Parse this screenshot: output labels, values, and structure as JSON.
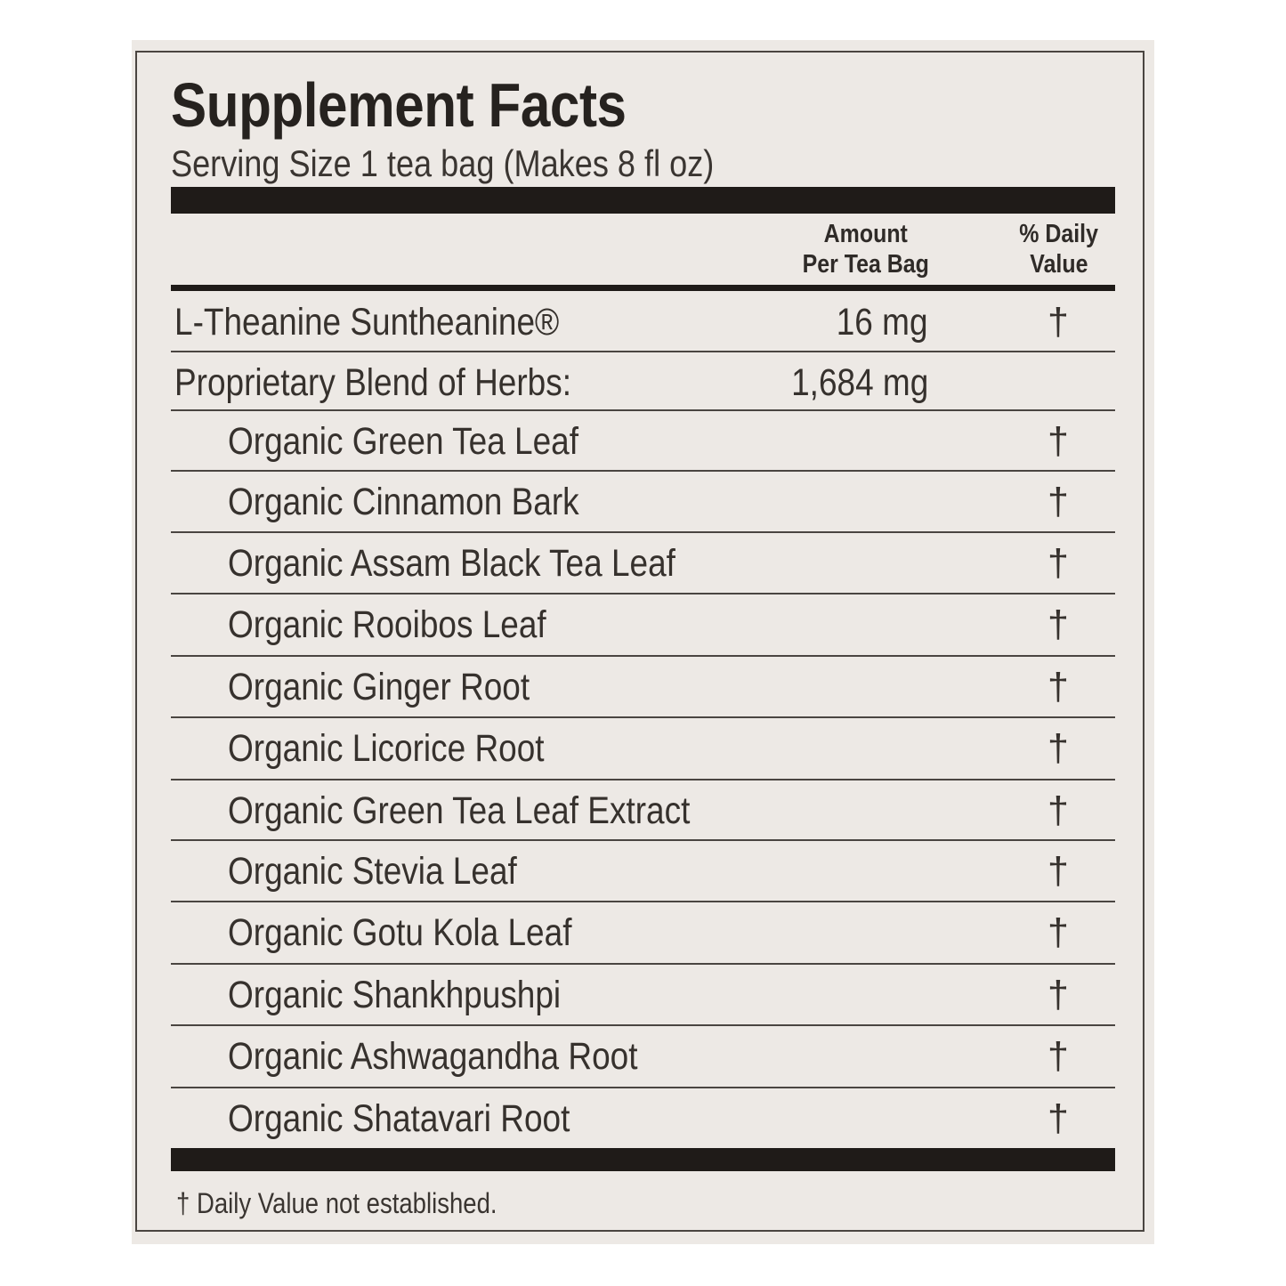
{
  "title": "Supplement Facts",
  "serving_size": "Serving Size 1 tea bag (Makes 8 fl oz)",
  "columns": {
    "amount_line1": "Amount",
    "amount_line2": "Per Tea Bag",
    "dv_line1": "% Daily",
    "dv_line2": "Value"
  },
  "rows": [
    {
      "name": "L-Theanine Suntheanine®",
      "amount": "16 mg",
      "dv": "†",
      "indent": false
    },
    {
      "name": "Proprietary Blend of Herbs:",
      "amount": "1,684 mg",
      "dv": "",
      "indent": false
    },
    {
      "name": "Organic Green Tea Leaf",
      "amount": "",
      "dv": "†",
      "indent": true
    },
    {
      "name": "Organic Cinnamon Bark",
      "amount": "",
      "dv": "†",
      "indent": true
    },
    {
      "name": "Organic Assam Black Tea Leaf",
      "amount": "",
      "dv": "†",
      "indent": true
    },
    {
      "name": "Organic Rooibos Leaf",
      "amount": "",
      "dv": "†",
      "indent": true
    },
    {
      "name": "Organic Ginger Root",
      "amount": "",
      "dv": "†",
      "indent": true
    },
    {
      "name": "Organic Licorice Root",
      "amount": "",
      "dv": "†",
      "indent": true
    },
    {
      "name": "Organic Green Tea Leaf Extract",
      "amount": "",
      "dv": "†",
      "indent": true
    },
    {
      "name": "Organic Stevia Leaf",
      "amount": "",
      "dv": "†",
      "indent": true
    },
    {
      "name": "Organic Gotu Kola Leaf",
      "amount": "",
      "dv": "†",
      "indent": true
    },
    {
      "name": "Organic Shankhpushpi",
      "amount": "",
      "dv": "†",
      "indent": true
    },
    {
      "name": "Organic Ashwagandha Root",
      "amount": "",
      "dv": "†",
      "indent": true
    },
    {
      "name": "Organic Shatavari Root",
      "amount": "",
      "dv": "†",
      "indent": true
    }
  ],
  "footnote": "† Daily Value not established."
}
